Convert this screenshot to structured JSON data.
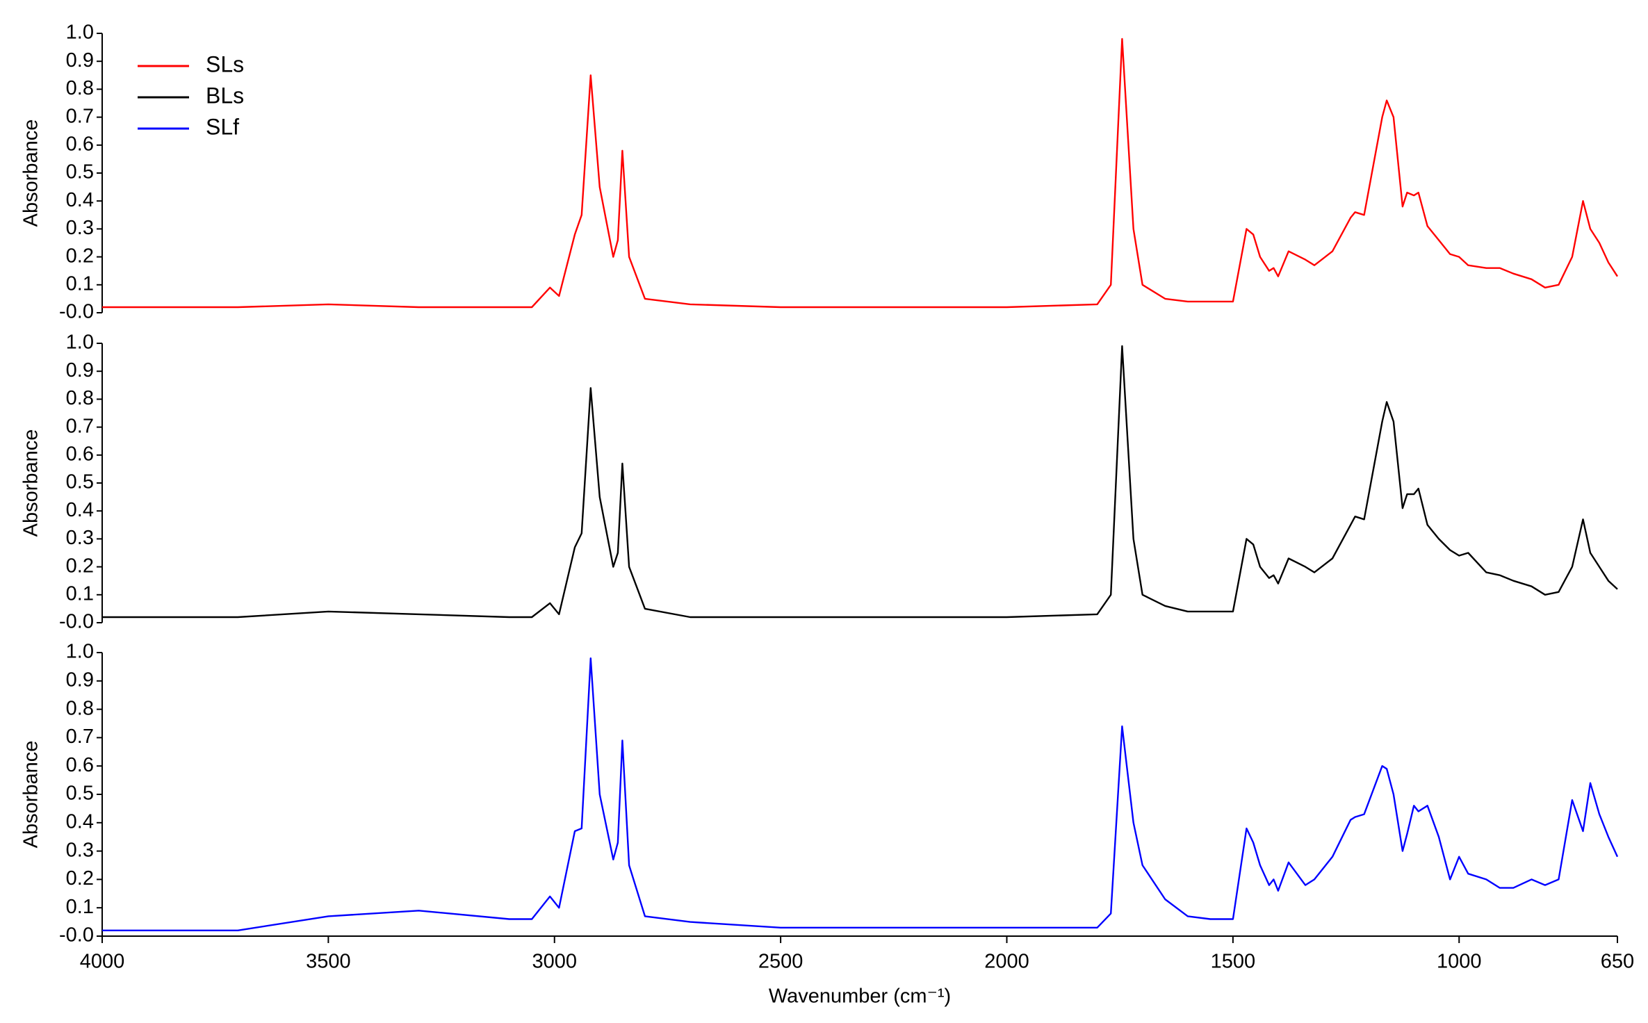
{
  "chart_data": [
    {
      "type": "line",
      "ylabel": "Absorbance",
      "legend": "upper left",
      "xlim": [
        4000,
        650
      ],
      "ylim": [
        0,
        1
      ],
      "yticks": [
        {
          "value": 0,
          "label": "-0.0"
        },
        0.1,
        0.2,
        0.3,
        0.4,
        0.5,
        0.6,
        0.7,
        0.8,
        0.9,
        {
          "value": 1,
          "label": "1.0"
        }
      ],
      "x": [
        4000,
        3700,
        3500,
        3300,
        3100,
        3050,
        3010,
        2990,
        2955,
        2940,
        2920,
        2900,
        2870,
        2860,
        2850,
        2835,
        2800,
        2700,
        2500,
        2300,
        2000,
        1800,
        1770,
        1745,
        1720,
        1700,
        1650,
        1600,
        1550,
        1500,
        1470,
        1455,
        1440,
        1420,
        1410,
        1400,
        1377,
        1340,
        1320,
        1280,
        1240,
        1230,
        1210,
        1170,
        1160,
        1145,
        1125,
        1115,
        1100,
        1090,
        1070,
        1045,
        1020,
        1000,
        980,
        940,
        910,
        880,
        840,
        810,
        780,
        750,
        726,
        710,
        690,
        670,
        650
      ],
      "series": [
        {
          "name": "SLs",
          "color": "#ff0000",
          "values": [
            0.02,
            0.02,
            0.03,
            0.02,
            0.02,
            0.02,
            0.09,
            0.06,
            0.28,
            0.35,
            0.85,
            0.45,
            0.2,
            0.26,
            0.58,
            0.2,
            0.05,
            0.03,
            0.02,
            0.02,
            0.02,
            0.03,
            0.1,
            0.98,
            0.3,
            0.1,
            0.05,
            0.04,
            0.04,
            0.04,
            0.3,
            0.28,
            0.2,
            0.15,
            0.16,
            0.13,
            0.22,
            0.19,
            0.17,
            0.22,
            0.34,
            0.36,
            0.35,
            0.7,
            0.76,
            0.7,
            0.38,
            0.43,
            0.42,
            0.43,
            0.31,
            0.26,
            0.21,
            0.2,
            0.17,
            0.16,
            0.16,
            0.14,
            0.12,
            0.09,
            0.1,
            0.2,
            0.4,
            0.3,
            0.25,
            0.18,
            0.13
          ]
        }
      ]
    },
    {
      "type": "line",
      "ylabel": "Absorbance",
      "xlim": [
        4000,
        650
      ],
      "ylim": [
        0,
        1
      ],
      "yticks": [
        {
          "value": 0,
          "label": "-0.0"
        },
        0.1,
        0.2,
        0.3,
        0.4,
        0.5,
        0.6,
        0.7,
        0.8,
        0.9,
        {
          "value": 1,
          "label": "1.0"
        }
      ],
      "x": [
        4000,
        3700,
        3500,
        3300,
        3100,
        3050,
        3010,
        2990,
        2955,
        2940,
        2920,
        2900,
        2870,
        2860,
        2850,
        2835,
        2800,
        2700,
        2500,
        2300,
        2000,
        1800,
        1770,
        1745,
        1720,
        1700,
        1650,
        1600,
        1550,
        1500,
        1470,
        1455,
        1440,
        1420,
        1410,
        1400,
        1377,
        1340,
        1320,
        1280,
        1240,
        1230,
        1210,
        1170,
        1160,
        1145,
        1125,
        1115,
        1100,
        1090,
        1070,
        1045,
        1020,
        1000,
        980,
        940,
        910,
        880,
        840,
        810,
        780,
        750,
        726,
        710,
        690,
        670,
        650
      ],
      "series": [
        {
          "name": "BLs",
          "color": "#000000",
          "values": [
            0.02,
            0.02,
            0.04,
            0.03,
            0.02,
            0.02,
            0.07,
            0.03,
            0.27,
            0.32,
            0.84,
            0.45,
            0.2,
            0.25,
            0.57,
            0.2,
            0.05,
            0.02,
            0.02,
            0.02,
            0.02,
            0.03,
            0.1,
            0.99,
            0.3,
            0.1,
            0.06,
            0.04,
            0.04,
            0.04,
            0.3,
            0.28,
            0.2,
            0.16,
            0.17,
            0.14,
            0.23,
            0.2,
            0.18,
            0.23,
            0.35,
            0.38,
            0.37,
            0.72,
            0.79,
            0.72,
            0.41,
            0.46,
            0.46,
            0.48,
            0.35,
            0.3,
            0.26,
            0.24,
            0.25,
            0.18,
            0.17,
            0.15,
            0.13,
            0.1,
            0.11,
            0.2,
            0.37,
            0.25,
            0.2,
            0.15,
            0.12
          ]
        }
      ]
    },
    {
      "type": "line",
      "ylabel": "Absorbance",
      "xlabel": "Wavenumber (cm⁻¹)",
      "xlim": [
        4000,
        650
      ],
      "xticks": [
        4000,
        3500,
        3000,
        2500,
        2000,
        1500,
        1000,
        650
      ],
      "ylim": [
        0,
        1
      ],
      "yticks": [
        {
          "value": 0,
          "label": "-0.0"
        },
        0.1,
        0.2,
        0.3,
        0.4,
        0.5,
        0.6,
        0.7,
        0.8,
        0.9,
        {
          "value": 1,
          "label": "1.0"
        }
      ],
      "x": [
        4000,
        3700,
        3500,
        3300,
        3100,
        3050,
        3010,
        2990,
        2955,
        2940,
        2920,
        2900,
        2870,
        2860,
        2850,
        2835,
        2800,
        2700,
        2500,
        2300,
        2000,
        1800,
        1770,
        1745,
        1720,
        1700,
        1650,
        1600,
        1550,
        1500,
        1470,
        1455,
        1440,
        1420,
        1410,
        1400,
        1377,
        1340,
        1320,
        1280,
        1240,
        1230,
        1210,
        1170,
        1160,
        1145,
        1125,
        1115,
        1100,
        1090,
        1070,
        1045,
        1020,
        1000,
        980,
        940,
        910,
        880,
        840,
        810,
        780,
        750,
        726,
        710,
        690,
        670,
        650
      ],
      "series": [
        {
          "name": "SLf",
          "color": "#0000ff",
          "values": [
            0.02,
            0.02,
            0.07,
            0.09,
            0.06,
            0.06,
            0.14,
            0.1,
            0.37,
            0.38,
            0.98,
            0.5,
            0.27,
            0.33,
            0.69,
            0.25,
            0.07,
            0.05,
            0.03,
            0.03,
            0.03,
            0.03,
            0.08,
            0.74,
            0.4,
            0.25,
            0.13,
            0.07,
            0.06,
            0.06,
            0.38,
            0.33,
            0.25,
            0.18,
            0.2,
            0.16,
            0.26,
            0.18,
            0.2,
            0.28,
            0.41,
            0.42,
            0.43,
            0.6,
            0.59,
            0.5,
            0.3,
            0.36,
            0.46,
            0.44,
            0.46,
            0.35,
            0.2,
            0.28,
            0.22,
            0.2,
            0.17,
            0.17,
            0.2,
            0.18,
            0.2,
            0.48,
            0.37,
            0.54,
            0.43,
            0.35,
            0.28
          ]
        }
      ]
    }
  ]
}
